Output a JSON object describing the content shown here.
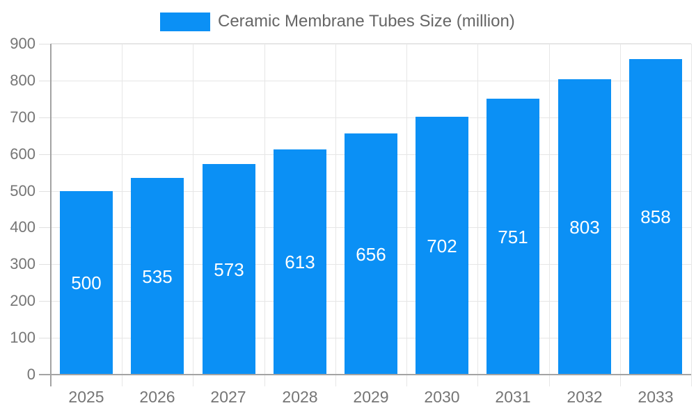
{
  "legend": {
    "label": "Ceramic Membrane Tubes Size (million)",
    "swatch_color": "#0b90f5"
  },
  "chart_data": {
    "type": "bar",
    "title": "Ceramic Membrane Tubes Size (million)",
    "series_name": "Ceramic Membrane Tubes Size (million)",
    "categories": [
      "2025",
      "2026",
      "2027",
      "2028",
      "2029",
      "2030",
      "2031",
      "2032",
      "2033"
    ],
    "values": [
      500,
      535,
      573,
      613,
      656,
      702,
      751,
      803,
      858
    ],
    "bar_labels": [
      "500",
      "535",
      "573",
      "613",
      "656",
      "702",
      "751",
      "803",
      "858"
    ],
    "xlabel": "",
    "ylabel": "",
    "ylim": [
      0,
      900
    ],
    "yticks": [
      0,
      100,
      200,
      300,
      400,
      500,
      600,
      700,
      800,
      900
    ],
    "grid": true,
    "legend_position": "top",
    "bar_color": "#0b90f5",
    "bar_label_color": "#ffffff",
    "axis_color": "#a3a3a3",
    "gridline_color": "#e6e6e6",
    "tick_label_color": "#757575",
    "legend_text_color": "#666666",
    "background_color": "#ffffff"
  }
}
